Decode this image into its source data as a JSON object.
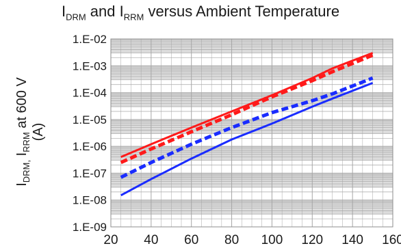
{
  "title": {
    "p1": "I",
    "s1": "DRM",
    "p2": " and I",
    "s2": "RRM",
    "p3": " versus Ambient Temperature"
  },
  "chart_data": {
    "type": "line",
    "log_y": true,
    "xlim": [
      20,
      160
    ],
    "ylim": [
      1e-09,
      0.01
    ],
    "x_ticks": [
      20,
      40,
      60,
      80,
      100,
      120,
      140,
      160
    ],
    "y_tick_values": [
      1e-09,
      1e-08,
      1e-07,
      1e-06,
      1e-05,
      0.0001,
      0.001,
      0.01
    ],
    "y_tick_labels": [
      "1.E-09",
      "1.E-08",
      "1.E-07",
      "1.E-06",
      "1.E-05",
      "1.E-04",
      "1.E-03",
      "1.E-02"
    ],
    "ylabel": {
      "line1_a": "I",
      "line1_a_sub": "DRM,",
      "line1_b": " I",
      "line1_b_sub": "RRM",
      "line1_c": " at 600 V",
      "line2": "(A)"
    },
    "grid": true,
    "colors": {
      "red": "#ff1a1a",
      "blue": "#1a2cff",
      "grid": "#a6a6a6",
      "grid_band": "#dcdcdc"
    },
    "series": [
      {
        "color": "#ff1a1a",
        "dash": false,
        "x": [
          25,
          40,
          60,
          80,
          100,
          120,
          130,
          150
        ],
        "y": [
          4e-07,
          1.2e-06,
          5e-06,
          2e-05,
          8e-05,
          0.00035,
          0.0008,
          0.003
        ]
      },
      {
        "color": "#ff1a1a",
        "dash": true,
        "x": [
          25,
          40,
          60,
          80,
          100,
          120,
          130,
          150
        ],
        "y": [
          2.5e-07,
          8e-07,
          3.5e-06,
          1.5e-05,
          7e-05,
          0.00028,
          0.0006,
          0.0025
        ]
      },
      {
        "color": "#1a2cff",
        "dash": true,
        "x": [
          25,
          40,
          60,
          80,
          100,
          120,
          130,
          150
        ],
        "y": [
          7e-08,
          2.5e-07,
          1.2e-06,
          5e-06,
          1.8e-05,
          5e-05,
          9e-05,
          0.00035
        ]
      },
      {
        "color": "#1a2cff",
        "dash": false,
        "x": [
          25,
          40,
          60,
          80,
          100,
          120,
          130,
          150
        ],
        "y": [
          1.5e-08,
          6e-08,
          3.5e-07,
          1.8e-06,
          7e-06,
          3e-05,
          6e-05,
          0.00023
        ]
      }
    ]
  }
}
